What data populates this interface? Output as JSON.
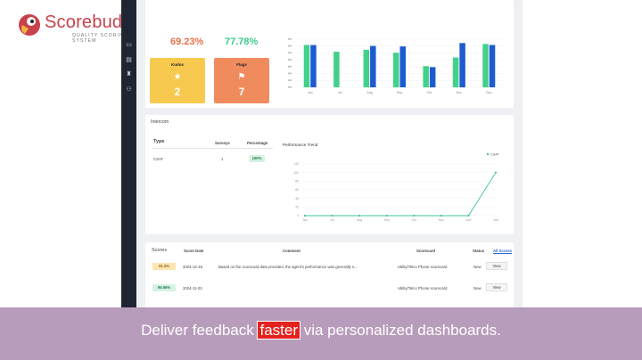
{
  "brand": {
    "name": "Scorebuddy",
    "tagline": "QUALITY SCORING SYSTEM",
    "color": "#c8414b"
  },
  "summary": {
    "percent_left": "69.23%",
    "percent_right": "77.78%",
    "tiles": [
      {
        "label": "Kudos",
        "icon": "star-icon",
        "value": "2",
        "color": "#f7ca4f"
      },
      {
        "label": "Flags",
        "icon": "flag-icon",
        "value": "7",
        "color": "#f08b5e"
      }
    ]
  },
  "chart_data": [
    {
      "type": "bar",
      "categories": [
        "Jan",
        "Jul",
        "Aug",
        "Sep",
        "Oct",
        "Nov",
        "Dec"
      ],
      "series": [
        {
          "values": [
            88,
            74,
            78,
            72,
            44,
            62,
            90
          ],
          "color": "#41d18b"
        },
        {
          "values": [
            88,
            0,
            86,
            85,
            42,
            92,
            88
          ],
          "color": "#1d5bd0"
        }
      ],
      "ylim": [
        0,
        100
      ],
      "y_ticks": [
        "",
        "",
        "",
        "",
        "",
        "",
        "",
        ""
      ]
    },
    {
      "type": "line",
      "title": "Performance Trend",
      "legend": "CSAT",
      "legend_position": "top-right",
      "categories": [
        "Jan",
        "Jul",
        "Aug",
        "Sep",
        "Oct",
        "Nov",
        "Dec",
        "Jan"
      ],
      "series": [
        {
          "name": "CSAT",
          "values": [
            0,
            0,
            0,
            0,
            0,
            0,
            0,
            100
          ],
          "color": "#41c6a0"
        }
      ],
      "ylim": [
        0,
        120
      ],
      "y_ticks": [
        "120",
        "100",
        "80",
        "60",
        "40",
        "20",
        "0"
      ]
    }
  ],
  "intercom": {
    "title": "Intercom",
    "columns": {
      "type": "Type",
      "surveys": "Surveys",
      "percentage": "Percentage"
    },
    "row": {
      "type": "CSAT",
      "surveys": "1",
      "percentage": "100%"
    }
  },
  "scores": {
    "title": "Scores",
    "all_link": "All Scores",
    "columns": {
      "date": "Score Date",
      "comment": "Comment",
      "scorecard": "Scorecard",
      "status": "Status"
    },
    "rows": [
      {
        "score": "91.3%",
        "score_bg": "#fbe6b0",
        "score_fg": "#8a6410",
        "date": "2024-12-19",
        "comment": "Based on the scorecard data provided, the agent's performance was generally s...",
        "scorecard": "Utility/Telco Phone scorecard",
        "status": "New",
        "action": "View"
      },
      {
        "score": "95.65%",
        "score_bg": "#d6f2e3",
        "score_fg": "#1f7a4c",
        "date": "2024-11-03",
        "comment": "",
        "scorecard": "Utility/Telco Phone scorecard",
        "status": "New",
        "action": "View"
      }
    ]
  },
  "caption": {
    "before": "Deliver feedback ",
    "highlight": "faster",
    "after": " via personalized dashboards."
  }
}
